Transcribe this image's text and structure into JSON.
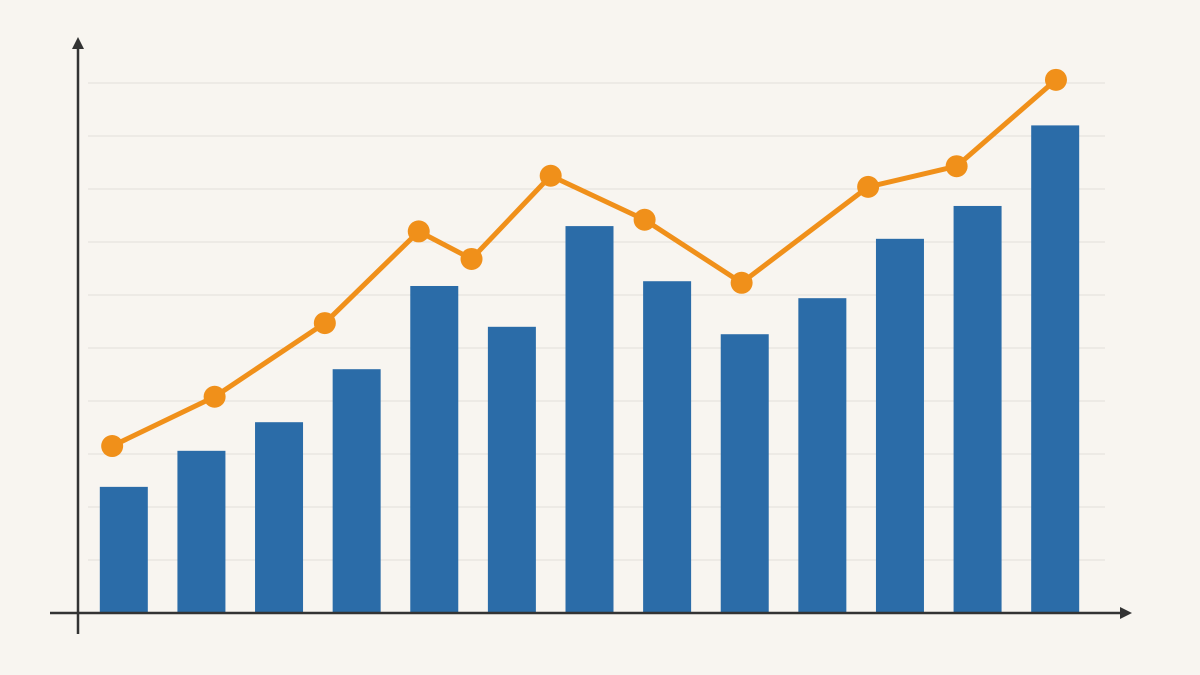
{
  "chart_data": {
    "type": "bar",
    "categories": [
      null,
      null,
      null,
      null,
      null,
      null,
      null,
      null,
      null,
      null,
      null,
      null,
      null
    ],
    "values": [
      2.38,
      3.06,
      3.6,
      4.6,
      6.17,
      5.4,
      7.3,
      6.26,
      5.26,
      5.94,
      7.06,
      7.68,
      9.2
    ],
    "color": "#2b6ca8",
    "line": {
      "type": "line",
      "color": "#f0901a",
      "x": [
        -0.15,
        1.17,
        2.59,
        3.8,
        4.48,
        5.5,
        6.71,
        7.96,
        9.59,
        10.73,
        12.01
      ],
      "values": [
        3.15,
        4.08,
        5.47,
        7.2,
        6.68,
        8.25,
        7.42,
        6.23,
        8.04,
        8.43,
        10.06
      ]
    },
    "ylim": [
      0,
      10.8
    ],
    "yticks": [
      1,
      2,
      3,
      4,
      5,
      6,
      7,
      8,
      9,
      10
    ],
    "grid": true
  }
}
